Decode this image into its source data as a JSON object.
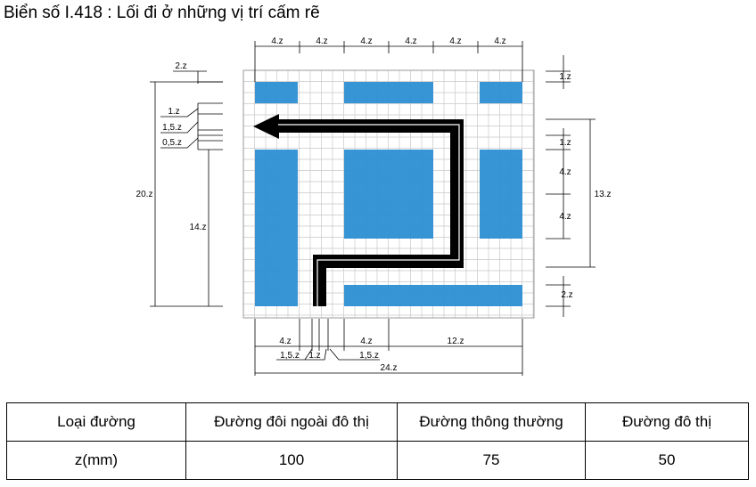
{
  "title": "Biển số I.418 : Lối đi ở những vị trí cấm rẽ",
  "colors": {
    "panel": "#2d8fd3",
    "arrow": "#000000",
    "grid": "#c8c8c8"
  },
  "dimensions": {
    "top": [
      "4.z",
      "4.z",
      "4.z",
      "4.z",
      "4.z",
      "4.z"
    ],
    "left_2z": "2.z",
    "left_1z": "1.z",
    "left_15z": "1,5.z",
    "left_05z": "0,5.z",
    "left_20z": "20.z",
    "left_14z": "14.z",
    "right_1z_top": "1.z",
    "right_1z_mid": "1.z",
    "right_4z_a": "4.z",
    "right_4z_b": "4.z",
    "right_13z": "13.z",
    "right_2z": "2.z",
    "bottom_4z_a": "4.z",
    "bottom_4z_b": "4.z",
    "bottom_12z": "12.z",
    "bottom_15z_a": "1,5.z",
    "bottom_1z": "1.z",
    "bottom_15z_b": "1,5.z",
    "bottom_24z": "24.z"
  },
  "table": {
    "header": [
      "Loại đường",
      "Đường đôi ngoài đô thị",
      "Đường thông thường",
      "Đường đô thị"
    ],
    "row": [
      "z(mm)",
      "100",
      "75",
      "50"
    ]
  }
}
